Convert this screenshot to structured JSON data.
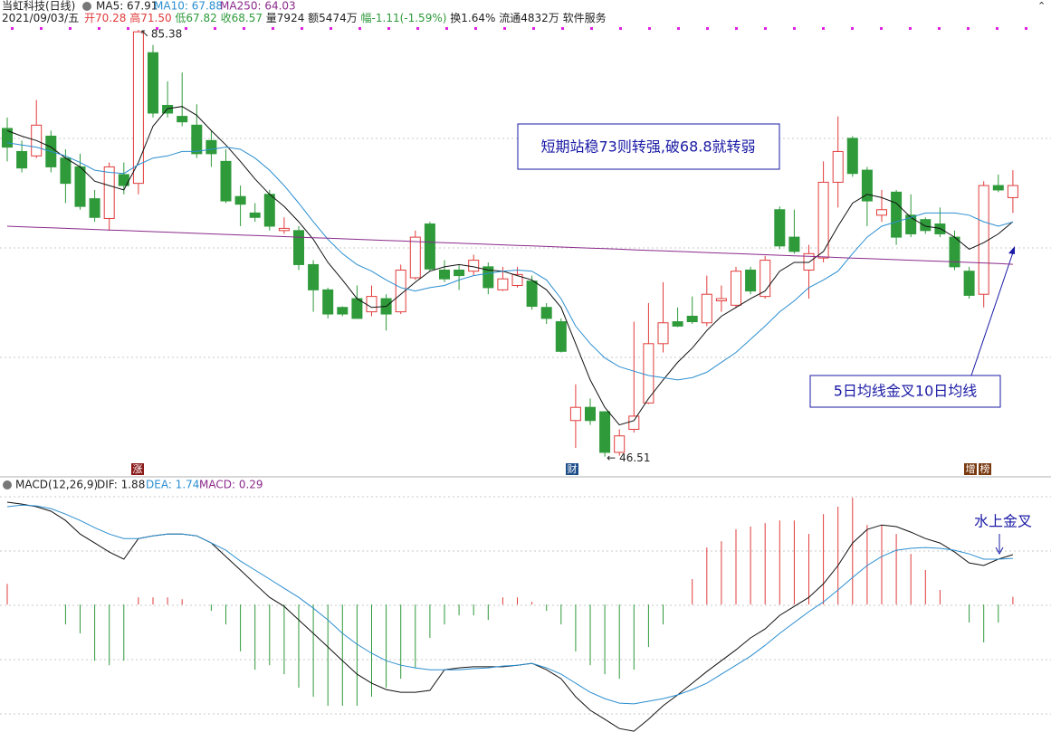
{
  "header": {
    "title": "当虹科技(日线)",
    "quote": [
      "2021/09/03/五",
      "开70.28",
      "高71.50",
      "低67.82",
      "收68.57",
      "量7924",
      "额5474万",
      "幅-1.11(-1.59%)",
      "换1.64%",
      "流通4832万",
      "软件服务"
    ]
  },
  "markers": [
    "涨",
    "财",
    "增",
    "榜"
  ],
  "chart_data": [
    {
      "type": "candlestick",
      "up_color": "#e23b3b",
      "down_color": "#2e9a3a",
      "ylim": [
        45.66,
        86.45
      ],
      "open": [
        76.4,
        74.3,
        73.9,
        75.7,
        73.7,
        72.9,
        70.0,
        68.2,
        72.2,
        71.4,
        83.3,
        78.5,
        77.5,
        76.7,
        75.3,
        73.4,
        70.2,
        68.7,
        70.4,
        67.1,
        67.1,
        64.0,
        61.7,
        60.1,
        60.9,
        59.7,
        60.9,
        59.7,
        62.8,
        67.7,
        63.5,
        63.5,
        63.4,
        63.8,
        61.7,
        62.1,
        62.5,
        60.1,
        58.8,
        49.8,
        51.0,
        50.6,
        46.9,
        49.0,
        51.4,
        56.8,
        58.8,
        59.3,
        58.7,
        60.7,
        60.3,
        63.5,
        61.1,
        69.0,
        66.5,
        63.5,
        64.6,
        71.5,
        75.5,
        72.6,
        68.5,
        70.6,
        68.5,
        68.1,
        67.7,
        66.5,
        63.4,
        61.3,
        71.2,
        70.1
      ],
      "high": [
        77.4,
        75.3,
        79.0,
        76.2,
        74.5,
        74.1,
        70.8,
        73.3,
        73.3,
        85.38,
        84.0,
        80.7,
        81.5,
        78.6,
        76.2,
        74.5,
        71.2,
        69.6,
        70.8,
        68.3,
        67.5,
        64.4,
        61.9,
        60.2,
        62.1,
        62.1,
        61.3,
        64.0,
        67.1,
        67.9,
        64.4,
        64.0,
        64.9,
        64.2,
        63.8,
        63.8,
        63.0,
        60.5,
        59.1,
        53.1,
        51.8,
        50.6,
        49.0,
        58.8,
        60.5,
        62.4,
        60.1,
        61.1,
        63.0,
        62.1,
        63.8,
        63.8,
        64.8,
        69.3,
        69.0,
        65.8,
        73.4,
        77.5,
        75.7,
        72.9,
        70.8,
        70.8,
        70.4,
        68.3,
        69.2,
        67.1,
        63.8,
        71.6,
        72.2,
        72.6
      ],
      "low": [
        73.4,
        72.4,
        73.7,
        72.4,
        69.6,
        69.0,
        67.9,
        67.1,
        70.4,
        70.4,
        77.4,
        77.4,
        76.6,
        73.7,
        72.9,
        69.6,
        67.5,
        67.9,
        67.1,
        66.8,
        63.5,
        59.7,
        59.1,
        59.3,
        59.1,
        59.3,
        58.0,
        59.5,
        62.6,
        63.4,
        62.4,
        61.7,
        63.0,
        61.3,
        61.6,
        61.9,
        59.9,
        58.6,
        56.0,
        47.3,
        49.4,
        46.51,
        46.6,
        48.7,
        51.3,
        56.0,
        58.3,
        58.6,
        58.4,
        59.7,
        60.1,
        61.3,
        60.9,
        65.4,
        65.0,
        60.9,
        64.2,
        69.2,
        72.0,
        67.5,
        67.9,
        65.8,
        66.5,
        66.8,
        66.5,
        63.5,
        60.9,
        60.1,
        70.6,
        68.7
      ],
      "close": [
        74.7,
        72.8,
        76.7,
        72.9,
        71.4,
        69.3,
        68.3,
        72.9,
        71.2,
        85.2,
        77.8,
        77.8,
        77.0,
        74.1,
        74.1,
        69.8,
        69.5,
        68.3,
        67.5,
        67.3,
        64.0,
        61.7,
        59.5,
        59.5,
        59.1,
        61.1,
        59.5,
        63.5,
        66.5,
        63.6,
        62.7,
        63.0,
        64.4,
        61.9,
        62.7,
        63.1,
        60.2,
        59.1,
        56.1,
        51.0,
        49.8,
        46.9,
        48.4,
        50.2,
        56.8,
        58.7,
        58.4,
        58.8,
        61.3,
        60.9,
        63.4,
        61.6,
        64.4,
        65.7,
        65.2,
        65.0,
        71.5,
        74.3,
        72.3,
        69.8,
        69.0,
        66.5,
        66.8,
        67.1,
        66.8,
        63.8,
        61.2,
        71.2,
        70.8,
        71.2
      ],
      "series": [
        {
          "label": "MA5: 67.91",
          "color": "#111111",
          "values": [
            76.2,
            75.7,
            75.3,
            74.7,
            73.7,
            72.9,
            71.6,
            71.2,
            70.8,
            73.3,
            76.6,
            78.2,
            78.4,
            77.6,
            76.2,
            74.9,
            73.4,
            71.8,
            70.4,
            69.3,
            67.9,
            66.3,
            64.2,
            62.6,
            60.9,
            60.1,
            60.2,
            61.3,
            62.4,
            63.4,
            63.8,
            64.0,
            63.8,
            63.5,
            63.4,
            63.0,
            62.6,
            61.7,
            60.1,
            56.8,
            53.5,
            51.0,
            49.4,
            49.8,
            51.8,
            53.5,
            55.1,
            56.4,
            58.0,
            59.3,
            60.1,
            60.9,
            61.6,
            63.4,
            64.2,
            64.2,
            65.2,
            67.5,
            69.6,
            70.4,
            70.1,
            69.6,
            68.3,
            67.5,
            67.3,
            66.5,
            65.4,
            66.0,
            66.8,
            67.91
          ]
        },
        {
          "label": "MA10: 67.88",
          "color": "#2b8ed0",
          "values": [
            75.1,
            74.9,
            74.7,
            74.3,
            73.9,
            73.3,
            72.6,
            72.4,
            72.3,
            73.1,
            73.7,
            73.9,
            74.3,
            74.3,
            74.5,
            74.7,
            74.5,
            73.7,
            72.6,
            71.2,
            69.6,
            67.9,
            66.3,
            65.0,
            64.0,
            63.4,
            62.6,
            61.9,
            61.6,
            61.9,
            62.1,
            62.6,
            63.0,
            63.2,
            63.4,
            63.5,
            63.4,
            62.6,
            60.9,
            58.4,
            56.8,
            55.5,
            54.7,
            54.3,
            53.9,
            53.7,
            53.5,
            53.7,
            54.2,
            55.1,
            56.0,
            57.2,
            58.4,
            59.7,
            60.7,
            61.9,
            62.6,
            63.4,
            65.0,
            66.5,
            67.5,
            67.9,
            68.3,
            68.7,
            68.7,
            68.7,
            68.5,
            67.9,
            67.5,
            67.88
          ]
        },
        {
          "label": "MA250: 64.03",
          "color": "#8b2a8b",
          "values": [
            67.5,
            67.45,
            67.4,
            67.35,
            67.3,
            67.25,
            67.2,
            67.15,
            67.1,
            67.05,
            67.0,
            66.95,
            66.9,
            66.85,
            66.8,
            66.75,
            66.7,
            66.65,
            66.6,
            66.55,
            66.5,
            66.45,
            66.4,
            66.35,
            66.3,
            66.25,
            66.2,
            66.15,
            66.1,
            66.05,
            66.0,
            65.95,
            65.9,
            65.85,
            65.8,
            65.75,
            65.7,
            65.65,
            65.6,
            65.55,
            65.5,
            65.45,
            65.4,
            65.35,
            65.3,
            65.25,
            65.2,
            65.15,
            65.1,
            65.05,
            65.0,
            64.95,
            64.9,
            64.85,
            64.8,
            64.75,
            64.7,
            64.65,
            64.6,
            64.55,
            64.5,
            64.45,
            64.4,
            64.35,
            64.3,
            64.25,
            64.2,
            64.15,
            64.1,
            64.03
          ]
        }
      ],
      "annotations": [
        "短期站稳73则转强,破68.8就转弱",
        "5日均线金叉10日均线"
      ]
    },
    {
      "type": "macd",
      "title": "MACD(12,26,9)",
      "ylim": [
        -4.81,
        4.1
      ],
      "series": [
        {
          "label": "DIF: 1.88",
          "color": "#111111",
          "values": [
            3.86,
            3.79,
            3.69,
            3.52,
            3.17,
            2.66,
            2.32,
            1.98,
            1.71,
            2.49,
            2.59,
            2.66,
            2.66,
            2.59,
            2.32,
            1.81,
            1.3,
            0.78,
            0.27,
            -0.07,
            -0.58,
            -1.09,
            -1.6,
            -2.12,
            -2.63,
            -2.97,
            -3.21,
            -3.31,
            -3.31,
            -3.24,
            -2.46,
            -2.39,
            -2.35,
            -2.35,
            -2.35,
            -2.29,
            -2.22,
            -2.46,
            -2.8,
            -3.48,
            -3.99,
            -4.33,
            -4.68,
            -4.78,
            -4.33,
            -3.82,
            -3.41,
            -2.97,
            -2.53,
            -2.12,
            -1.71,
            -1.26,
            -0.92,
            -0.41,
            -0.07,
            0.27,
            0.78,
            1.47,
            2.32,
            2.83,
            3.0,
            2.94,
            2.73,
            2.49,
            2.32,
            1.98,
            1.57,
            1.47,
            1.71,
            1.88
          ]
        },
        {
          "label": "DEA: 1.74",
          "color": "#2b8ed0",
          "values": [
            3.69,
            3.75,
            3.72,
            3.62,
            3.41,
            3.17,
            2.9,
            2.66,
            2.49,
            2.49,
            2.59,
            2.66,
            2.66,
            2.59,
            2.32,
            2.05,
            1.64,
            1.3,
            0.96,
            0.61,
            0.27,
            -0.14,
            -0.58,
            -1.09,
            -1.5,
            -1.84,
            -2.12,
            -2.29,
            -2.39,
            -2.46,
            -2.46,
            -2.46,
            -2.42,
            -2.39,
            -2.32,
            -2.29,
            -2.22,
            -2.39,
            -2.63,
            -2.97,
            -3.31,
            -3.55,
            -3.72,
            -3.75,
            -3.65,
            -3.55,
            -3.41,
            -3.21,
            -2.97,
            -2.63,
            -2.29,
            -1.95,
            -1.54,
            -1.09,
            -0.68,
            -0.27,
            0.1,
            0.55,
            1.02,
            1.47,
            1.81,
            2.05,
            2.12,
            2.15,
            2.12,
            2.05,
            1.91,
            1.71,
            1.71,
            1.74
          ]
        }
      ],
      "bars": {
        "label": "MACD: 0.29",
        "color": "#8b2a8b",
        "up_color": "#e23b3b",
        "down_color": "#2e9a3a",
        "values": [
          0.78,
          0,
          0,
          0,
          -0.75,
          -1.09,
          -2.12,
          -2.29,
          -2.12,
          0.27,
          0.27,
          0.27,
          0.2,
          0,
          -0.24,
          -0.75,
          -1.77,
          -2.46,
          -2.29,
          -2.63,
          -3.14,
          -3.48,
          -3.82,
          -3.82,
          -3.82,
          -3.48,
          -3.14,
          -2.8,
          -2.39,
          -1.26,
          -0.75,
          -0.41,
          -0.41,
          -0.58,
          0.27,
          0.27,
          0.1,
          -0.24,
          -0.75,
          -1.77,
          -2.29,
          -2.63,
          -2.8,
          -2.46,
          -1.6,
          -0.75,
          0,
          0.96,
          2.15,
          2.39,
          2.84,
          2.94,
          3.07,
          3.17,
          3.17,
          2.66,
          3.41,
          3.69,
          4.03,
          3.0,
          3.0,
          2.66,
          1.91,
          1.3,
          0.55,
          0,
          -0.68,
          -1.43,
          -0.68,
          0.29
        ]
      },
      "annotations": [
        "水上金叉"
      ]
    }
  ]
}
